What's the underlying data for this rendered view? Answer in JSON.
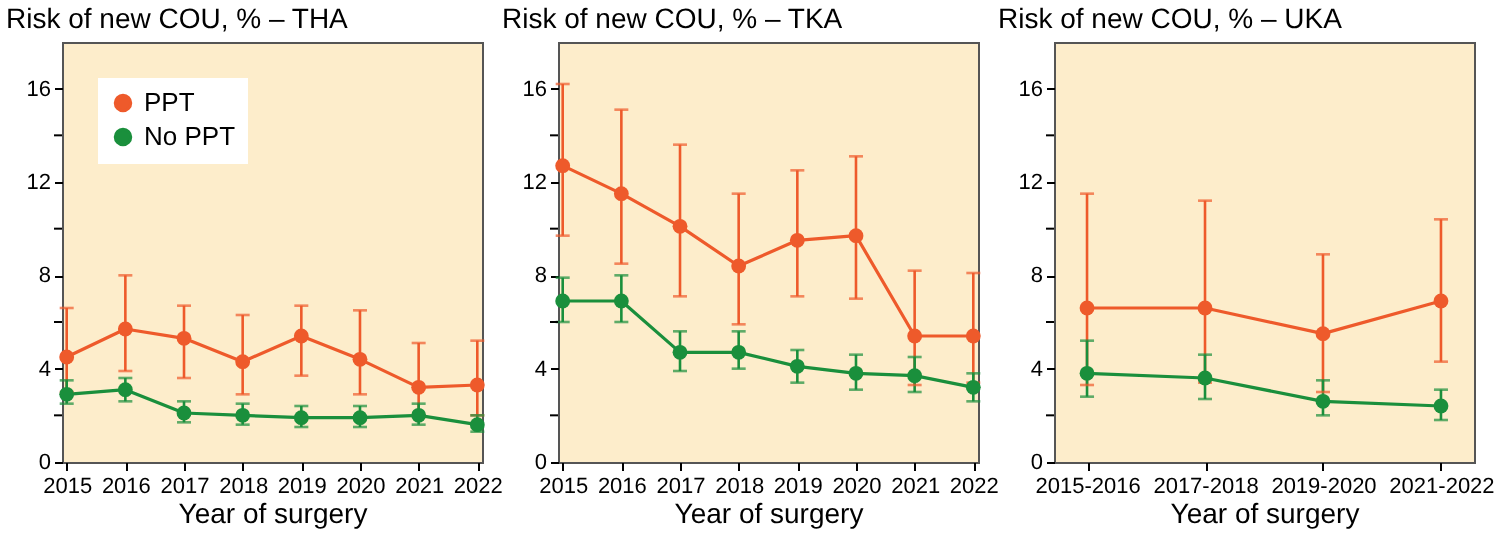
{
  "chart_data": [
    {
      "type": "line",
      "title": "Risk of new COU, % – THA",
      "xlabel": "Year of surgery",
      "categories": [
        "2015",
        "2016",
        "2017",
        "2018",
        "2019",
        "2020",
        "2021",
        "2022"
      ],
      "ylim": [
        0,
        18
      ],
      "yticks": [
        0,
        {
          "value": 2,
          "label": null
        },
        4,
        {
          "value": 6,
          "label": null
        },
        8,
        {
          "value": 10,
          "label": null
        },
        12,
        {
          "value": 14,
          "label": null
        },
        16
      ],
      "grid": false,
      "legend": "top left",
      "marker": "circle",
      "series": [
        {
          "name": "PPT",
          "color": "#ee5a2b",
          "values": [
            4.5,
            5.7,
            5.3,
            4.3,
            5.4,
            4.4,
            3.2,
            3.3
          ],
          "errors": [
            [
              3.0,
              6.6
            ],
            [
              3.9,
              8.0
            ],
            [
              3.6,
              6.7
            ],
            [
              2.9,
              6.3
            ],
            [
              3.7,
              6.7
            ],
            [
              2.9,
              6.5
            ],
            [
              2.0,
              5.1
            ],
            [
              2.0,
              5.2
            ]
          ]
        },
        {
          "name": "No PPT",
          "color": "#1a8f3c",
          "values": [
            2.9,
            3.1,
            2.1,
            2.0,
            1.9,
            1.9,
            2.0,
            1.6
          ],
          "errors": [
            [
              2.5,
              3.5
            ],
            [
              2.6,
              3.6
            ],
            [
              1.7,
              2.6
            ],
            [
              1.6,
              2.5
            ],
            [
              1.5,
              2.4
            ],
            [
              1.5,
              2.4
            ],
            [
              1.6,
              2.5
            ],
            [
              1.3,
              2.0
            ]
          ]
        }
      ]
    },
    {
      "type": "line",
      "title": "Risk of new COU, % – TKA",
      "xlabel": "Year of surgery",
      "categories": [
        "2015",
        "2016",
        "2017",
        "2018",
        "2019",
        "2020",
        "2021",
        "2022"
      ],
      "ylim": [
        0,
        18
      ],
      "yticks": [
        0,
        {
          "value": 2,
          "label": null
        },
        4,
        {
          "value": 6,
          "label": null
        },
        8,
        {
          "value": 10,
          "label": null
        },
        12,
        {
          "value": 14,
          "label": null
        },
        16
      ],
      "grid": false,
      "marker": "circle",
      "series": [
        {
          "color": "#ee5a2b",
          "values": [
            12.7,
            11.5,
            10.1,
            8.4,
            9.5,
            9.7,
            5.4,
            5.4
          ],
          "errors": [
            [
              9.7,
              16.2
            ],
            [
              8.5,
              15.1
            ],
            [
              7.1,
              13.6
            ],
            [
              5.9,
              11.5
            ],
            [
              7.1,
              12.5
            ],
            [
              7.0,
              13.1
            ],
            [
              3.3,
              8.2
            ],
            [
              3.4,
              8.1
            ]
          ]
        },
        {
          "color": "#1a8f3c",
          "values": [
            6.9,
            6.9,
            4.7,
            4.7,
            4.1,
            3.8,
            3.7,
            3.2
          ],
          "errors": [
            [
              6.0,
              7.9
            ],
            [
              6.0,
              8.0
            ],
            [
              3.9,
              5.6
            ],
            [
              4.0,
              5.6
            ],
            [
              3.4,
              4.8
            ],
            [
              3.1,
              4.6
            ],
            [
              3.0,
              4.5
            ],
            [
              2.6,
              3.8
            ]
          ]
        }
      ]
    },
    {
      "type": "line",
      "title": "Risk of new COU, % – UKA",
      "xlabel": "Year of surgery",
      "categories": [
        "2015-2016",
        "2017-2018",
        "2019-2020",
        "2021-2022"
      ],
      "ylim": [
        0,
        18
      ],
      "yticks": [
        0,
        {
          "value": 2,
          "label": null
        },
        4,
        {
          "value": 6,
          "label": null
        },
        8,
        {
          "value": 10,
          "label": null
        },
        12,
        {
          "value": 14,
          "label": null
        },
        16
      ],
      "grid": false,
      "marker": "circle",
      "series": [
        {
          "color": "#ee5a2b",
          "values": [
            6.6,
            6.6,
            5.5,
            6.9
          ],
          "errors": [
            [
              3.3,
              11.5
            ],
            [
              3.4,
              11.2
            ],
            [
              3.0,
              8.9
            ],
            [
              4.3,
              10.4
            ]
          ]
        },
        {
          "color": "#1a8f3c",
          "values": [
            3.8,
            3.6,
            2.6,
            2.4
          ],
          "errors": [
            [
              2.8,
              5.2
            ],
            [
              2.7,
              4.6
            ],
            [
              2.0,
              3.5
            ],
            [
              1.8,
              3.1
            ]
          ]
        }
      ]
    }
  ]
}
